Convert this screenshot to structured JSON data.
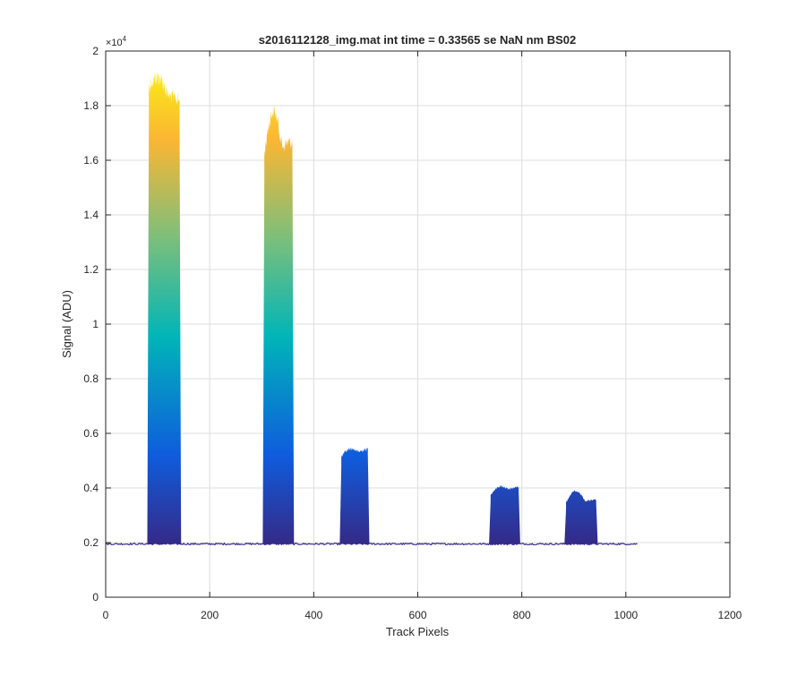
{
  "chart_data": {
    "type": "area",
    "title": "s2016112128_img.mat int time = 0.33565 se  NaN nm BS02",
    "xlabel": "Track Pixels",
    "ylabel": "Signal (ADU)",
    "y_exponent_label": "×10",
    "y_exponent_power": "4",
    "xlim": [
      0,
      1200
    ],
    "ylim": [
      0,
      2
    ],
    "x_ticks": [
      "0",
      "200",
      "400",
      "600",
      "800",
      "1000",
      "1200"
    ],
    "y_ticks": [
      "0",
      "0.2",
      "0.4",
      "0.6",
      "0.8",
      "1",
      "1.2",
      "1.4",
      "1.6",
      "1.8",
      "2"
    ],
    "grid": true,
    "colormap": "parula",
    "colors": {
      "dark_blue": "#352a87",
      "blue": "#0f5cdd",
      "cyan": "#00b5b8",
      "green": "#7cbf7b",
      "orange": "#fbb633",
      "yellow": "#f9fb0e",
      "grid": "#dcdcdc",
      "axis": "#262626"
    },
    "baseline": 0.195,
    "x_end": 1023,
    "peaks": [
      {
        "x_start": 80,
        "x_end": 145,
        "peak_max": 1.95,
        "top_left": 1.9,
        "top_right": 1.85
      },
      {
        "x_start": 302,
        "x_end": 362,
        "peak_max": 1.84,
        "top_left": 1.65,
        "top_right": 1.7
      },
      {
        "x_start": 450,
        "x_end": 507,
        "peak_max": 0.57,
        "top_left": 0.52,
        "top_right": 0.55
      },
      {
        "x_start": 737,
        "x_end": 797,
        "peak_max": 0.43,
        "top_left": 0.38,
        "top_right": 0.41
      },
      {
        "x_start": 882,
        "x_end": 946,
        "peak_max": 0.4,
        "top_left": 0.35,
        "top_right": 0.36
      }
    ]
  }
}
